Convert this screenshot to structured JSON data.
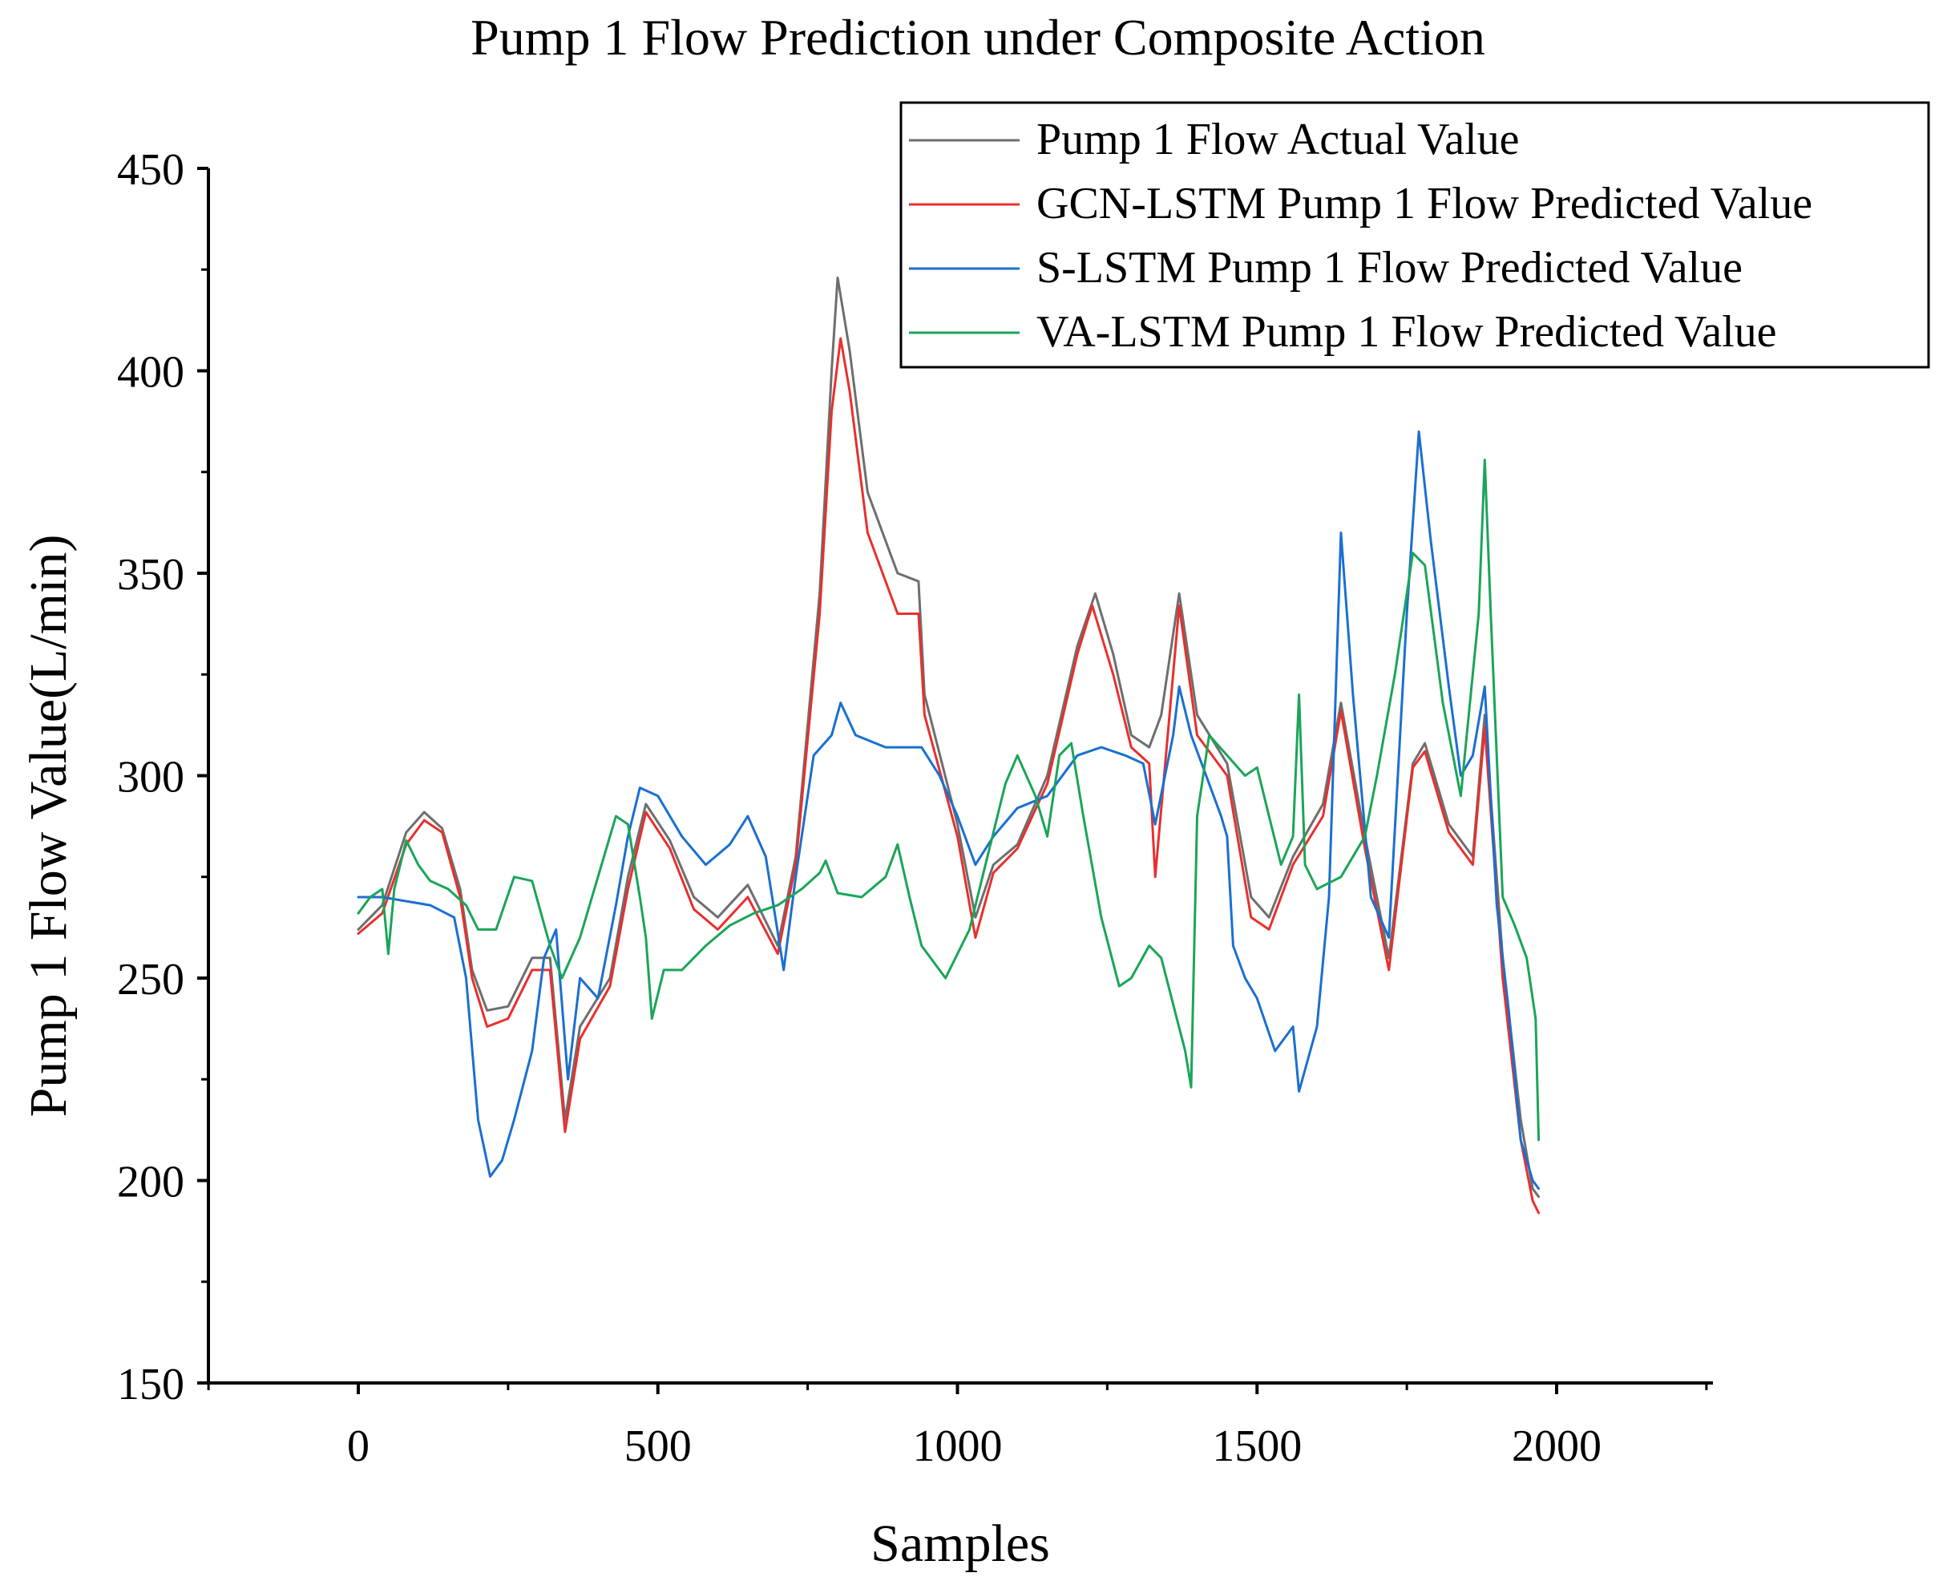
{
  "chart_data": {
    "type": "line",
    "title": "Pump 1 Flow Prediction under Composite Action",
    "xlabel": "Samples",
    "ylabel": "Pump 1 Flow Value(L/min)",
    "xlim": [
      -250,
      2250
    ],
    "ylim": [
      150,
      450
    ],
    "xticks": [
      0,
      500,
      1000,
      1500,
      2000
    ],
    "yticks": [
      150,
      200,
      250,
      300,
      350,
      400,
      450
    ],
    "grid": false,
    "legend": "top-right",
    "series": [
      {
        "name": "Pump 1 Flow Actual Value",
        "color": "#6e6e6e",
        "points": [
          [
            0,
            262
          ],
          [
            40,
            268
          ],
          [
            80,
            286
          ],
          [
            110,
            291
          ],
          [
            140,
            287
          ],
          [
            170,
            272
          ],
          [
            190,
            252
          ],
          [
            215,
            242
          ],
          [
            250,
            243
          ],
          [
            290,
            255
          ],
          [
            320,
            255
          ],
          [
            345,
            215
          ],
          [
            370,
            238
          ],
          [
            420,
            250
          ],
          [
            450,
            275
          ],
          [
            480,
            293
          ],
          [
            520,
            284
          ],
          [
            560,
            270
          ],
          [
            600,
            265
          ],
          [
            650,
            273
          ],
          [
            700,
            258
          ],
          [
            730,
            280
          ],
          [
            770,
            345
          ],
          [
            790,
            400
          ],
          [
            800,
            423
          ],
          [
            820,
            405
          ],
          [
            850,
            370
          ],
          [
            900,
            350
          ],
          [
            935,
            348
          ],
          [
            945,
            320
          ],
          [
            1000,
            288
          ],
          [
            1030,
            265
          ],
          [
            1060,
            278
          ],
          [
            1100,
            283
          ],
          [
            1150,
            300
          ],
          [
            1200,
            332
          ],
          [
            1230,
            345
          ],
          [
            1260,
            330
          ],
          [
            1290,
            310
          ],
          [
            1320,
            307
          ],
          [
            1340,
            315
          ],
          [
            1370,
            345
          ],
          [
            1400,
            315
          ],
          [
            1450,
            303
          ],
          [
            1490,
            270
          ],
          [
            1520,
            265
          ],
          [
            1560,
            280
          ],
          [
            1610,
            293
          ],
          [
            1640,
            318
          ],
          [
            1680,
            285
          ],
          [
            1720,
            255
          ],
          [
            1760,
            303
          ],
          [
            1780,
            308
          ],
          [
            1820,
            288
          ],
          [
            1860,
            280
          ],
          [
            1880,
            315
          ],
          [
            1910,
            255
          ],
          [
            1940,
            215
          ],
          [
            1960,
            198
          ],
          [
            1970,
            196
          ]
        ]
      },
      {
        "name": "GCN-LSTM Pump 1 Flow Predicted Value",
        "color": "#e8302d",
        "points": [
          [
            0,
            261
          ],
          [
            40,
            266
          ],
          [
            80,
            283
          ],
          [
            110,
            289
          ],
          [
            140,
            286
          ],
          [
            170,
            270
          ],
          [
            190,
            250
          ],
          [
            215,
            238
          ],
          [
            250,
            240
          ],
          [
            290,
            252
          ],
          [
            320,
            252
          ],
          [
            345,
            212
          ],
          [
            370,
            235
          ],
          [
            420,
            248
          ],
          [
            450,
            272
          ],
          [
            480,
            291
          ],
          [
            520,
            282
          ],
          [
            560,
            267
          ],
          [
            600,
            262
          ],
          [
            650,
            270
          ],
          [
            700,
            256
          ],
          [
            730,
            278
          ],
          [
            770,
            340
          ],
          [
            790,
            390
          ],
          [
            805,
            408
          ],
          [
            820,
            395
          ],
          [
            850,
            360
          ],
          [
            900,
            340
          ],
          [
            935,
            340
          ],
          [
            945,
            315
          ],
          [
            1000,
            285
          ],
          [
            1030,
            260
          ],
          [
            1060,
            276
          ],
          [
            1100,
            282
          ],
          [
            1150,
            298
          ],
          [
            1200,
            330
          ],
          [
            1225,
            342
          ],
          [
            1260,
            325
          ],
          [
            1290,
            307
          ],
          [
            1320,
            303
          ],
          [
            1330,
            275
          ],
          [
            1370,
            342
          ],
          [
            1400,
            310
          ],
          [
            1450,
            300
          ],
          [
            1490,
            265
          ],
          [
            1520,
            262
          ],
          [
            1560,
            278
          ],
          [
            1610,
            290
          ],
          [
            1640,
            316
          ],
          [
            1680,
            282
          ],
          [
            1720,
            252
          ],
          [
            1760,
            302
          ],
          [
            1780,
            306
          ],
          [
            1820,
            286
          ],
          [
            1860,
            278
          ],
          [
            1880,
            312
          ],
          [
            1910,
            250
          ],
          [
            1940,
            210
          ],
          [
            1960,
            195
          ],
          [
            1970,
            192
          ]
        ]
      },
      {
        "name": "S-LSTM Pump 1 Flow Predicted Value",
        "color": "#1a6fd1",
        "points": [
          [
            0,
            270
          ],
          [
            40,
            270
          ],
          [
            80,
            269
          ],
          [
            120,
            268
          ],
          [
            160,
            265
          ],
          [
            180,
            250
          ],
          [
            200,
            215
          ],
          [
            220,
            201
          ],
          [
            240,
            205
          ],
          [
            260,
            215
          ],
          [
            290,
            232
          ],
          [
            310,
            255
          ],
          [
            330,
            262
          ],
          [
            350,
            225
          ],
          [
            370,
            250
          ],
          [
            400,
            245
          ],
          [
            430,
            268
          ],
          [
            450,
            285
          ],
          [
            470,
            297
          ],
          [
            500,
            295
          ],
          [
            540,
            285
          ],
          [
            580,
            278
          ],
          [
            620,
            283
          ],
          [
            650,
            290
          ],
          [
            680,
            280
          ],
          [
            710,
            252
          ],
          [
            730,
            275
          ],
          [
            760,
            305
          ],
          [
            790,
            310
          ],
          [
            805,
            318
          ],
          [
            830,
            310
          ],
          [
            880,
            307
          ],
          [
            940,
            307
          ],
          [
            970,
            300
          ],
          [
            1000,
            290
          ],
          [
            1030,
            278
          ],
          [
            1060,
            285
          ],
          [
            1100,
            292
          ],
          [
            1150,
            295
          ],
          [
            1200,
            305
          ],
          [
            1240,
            307
          ],
          [
            1280,
            305
          ],
          [
            1310,
            303
          ],
          [
            1330,
            288
          ],
          [
            1360,
            310
          ],
          [
            1370,
            322
          ],
          [
            1390,
            310
          ],
          [
            1420,
            298
          ],
          [
            1440,
            290
          ],
          [
            1450,
            285
          ],
          [
            1460,
            258
          ],
          [
            1480,
            250
          ],
          [
            1500,
            245
          ],
          [
            1530,
            232
          ],
          [
            1560,
            238
          ],
          [
            1570,
            222
          ],
          [
            1600,
            238
          ],
          [
            1620,
            270
          ],
          [
            1640,
            360
          ],
          [
            1660,
            320
          ],
          [
            1690,
            270
          ],
          [
            1720,
            260
          ],
          [
            1750,
            340
          ],
          [
            1770,
            385
          ],
          [
            1790,
            358
          ],
          [
            1820,
            322
          ],
          [
            1840,
            300
          ],
          [
            1860,
            305
          ],
          [
            1880,
            322
          ],
          [
            1900,
            268
          ],
          [
            1920,
            242
          ],
          [
            1940,
            210
          ],
          [
            1960,
            200
          ],
          [
            1970,
            198
          ]
        ]
      },
      {
        "name": "VA-LSTM Pump 1 Flow Predicted Value",
        "color": "#1aa558",
        "points": [
          [
            0,
            266
          ],
          [
            20,
            270
          ],
          [
            40,
            272
          ],
          [
            50,
            256
          ],
          [
            60,
            272
          ],
          [
            80,
            284
          ],
          [
            100,
            278
          ],
          [
            120,
            274
          ],
          [
            150,
            272
          ],
          [
            180,
            268
          ],
          [
            200,
            262
          ],
          [
            230,
            262
          ],
          [
            260,
            275
          ],
          [
            290,
            274
          ],
          [
            320,
            258
          ],
          [
            340,
            250
          ],
          [
            370,
            260
          ],
          [
            400,
            275
          ],
          [
            430,
            290
          ],
          [
            450,
            288
          ],
          [
            470,
            270
          ],
          [
            480,
            260
          ],
          [
            490,
            240
          ],
          [
            510,
            252
          ],
          [
            540,
            252
          ],
          [
            580,
            258
          ],
          [
            620,
            263
          ],
          [
            660,
            266
          ],
          [
            700,
            268
          ],
          [
            740,
            272
          ],
          [
            770,
            276
          ],
          [
            780,
            279
          ],
          [
            800,
            271
          ],
          [
            840,
            270
          ],
          [
            880,
            275
          ],
          [
            900,
            283
          ],
          [
            920,
            270
          ],
          [
            940,
            258
          ],
          [
            980,
            250
          ],
          [
            1020,
            262
          ],
          [
            1050,
            280
          ],
          [
            1080,
            298
          ],
          [
            1100,
            305
          ],
          [
            1130,
            295
          ],
          [
            1150,
            285
          ],
          [
            1170,
            305
          ],
          [
            1190,
            308
          ],
          [
            1210,
            290
          ],
          [
            1240,
            265
          ],
          [
            1270,
            248
          ],
          [
            1290,
            250
          ],
          [
            1320,
            258
          ],
          [
            1340,
            255
          ],
          [
            1380,
            232
          ],
          [
            1390,
            223
          ],
          [
            1400,
            290
          ],
          [
            1420,
            310
          ],
          [
            1450,
            305
          ],
          [
            1480,
            300
          ],
          [
            1500,
            302
          ],
          [
            1520,
            290
          ],
          [
            1540,
            278
          ],
          [
            1560,
            285
          ],
          [
            1570,
            320
          ],
          [
            1580,
            278
          ],
          [
            1600,
            272
          ],
          [
            1640,
            275
          ],
          [
            1680,
            285
          ],
          [
            1700,
            300
          ],
          [
            1730,
            325
          ],
          [
            1760,
            355
          ],
          [
            1780,
            352
          ],
          [
            1810,
            318
          ],
          [
            1840,
            295
          ],
          [
            1870,
            340
          ],
          [
            1880,
            378
          ],
          [
            1890,
            340
          ],
          [
            1910,
            270
          ],
          [
            1930,
            263
          ],
          [
            1950,
            255
          ],
          [
            1965,
            240
          ],
          [
            1970,
            210
          ]
        ]
      }
    ]
  }
}
